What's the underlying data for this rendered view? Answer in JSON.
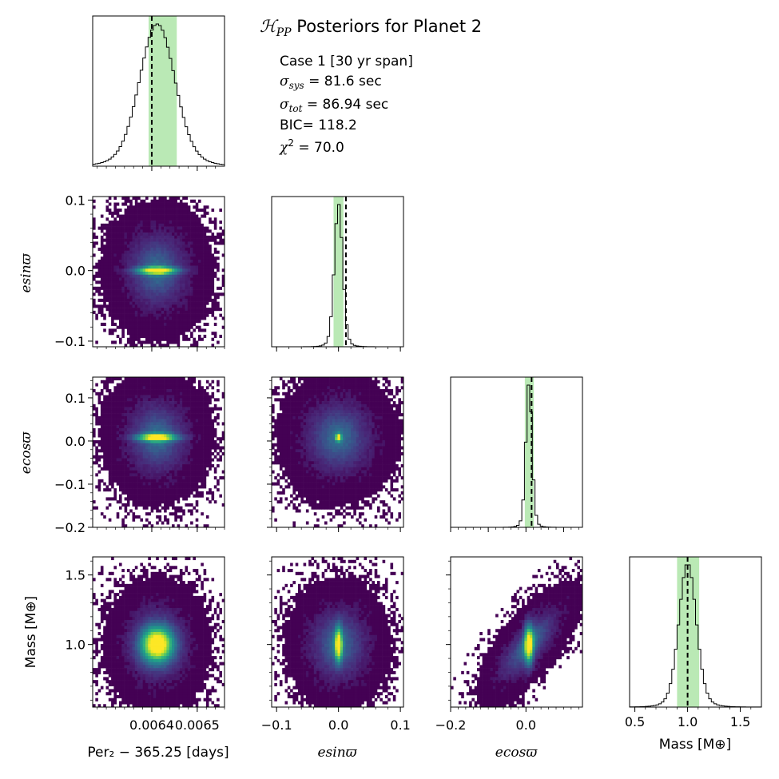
{
  "title": {
    "symbol": "ℋ",
    "symbol_sub": "PP",
    "text": " Posteriors for Planet 2"
  },
  "info_box": {
    "line1": "Case 1 [30 yr span]",
    "sigma_sys": {
      "symbol": "σ",
      "sub": "sys",
      "value": " = 81.6 sec"
    },
    "sigma_tot": {
      "symbol": "σ",
      "sub": "tot",
      "value": " = 86.94 sec"
    },
    "bic": "BIC= 118.2",
    "chi2": {
      "symbol": "χ",
      "sup": "2",
      "value": " = 70.0"
    }
  },
  "axis_labels": {
    "x_period": "Per₂ − 365.25 [days]",
    "x_esin": "esinϖ",
    "x_ecos": "ecosϖ",
    "x_mass": "Mass [M⊕]",
    "y_esin": "esinϖ",
    "y_ecos": "ecosϖ",
    "y_mass": "Mass [M⊕]"
  },
  "colors": {
    "band": "#8fdc88",
    "viridis": [
      "#440154",
      "#482878",
      "#3e4989",
      "#31688e",
      "#26828e",
      "#1f9e89",
      "#35b779",
      "#6ece58",
      "#b5de2b",
      "#fde725"
    ]
  },
  "chart_data": {
    "type": "corner",
    "parameters": [
      {
        "id": "period",
        "label": "Per₂ − 365.25 [days]",
        "range": [
          0.00627,
          0.00656
        ],
        "ticks": [
          0.0064,
          0.0065
        ],
        "tick_labels": [
          "0.0064",
          "0.0065"
        ],
        "minor_step": 2e-05,
        "mean": 0.006412,
        "sigma": 3.8e-05,
        "truth": 0.0064,
        "band": [
          0.006393,
          0.006455
        ]
      },
      {
        "id": "esin",
        "label": "esinϖ",
        "range": [
          -0.108,
          0.105
        ],
        "ticks": [
          -0.1,
          0.0,
          0.1
        ],
        "tick_labels": [
          "−0.1",
          "0.0",
          "0.1"
        ],
        "minor_step": 0.02,
        "mean": 0.0,
        "sigma": 0.0065,
        "truth": 0.012,
        "band": [
          -0.008,
          0.008
        ]
      },
      {
        "id": "ecos",
        "label": "ecosϖ",
        "range": [
          -0.2,
          0.15
        ],
        "ticks": [
          -0.2,
          -0.1,
          0.0,
          0.1
        ],
        "tick_labels": [
          "−0.2",
          "−0.1",
          "0.0",
          "0.1"
        ],
        "minor_step": 0.02,
        "mean": 0.008,
        "sigma": 0.008,
        "truth": 0.015,
        "band": [
          -0.003,
          0.021
        ]
      },
      {
        "id": "mass",
        "label": "Mass [M⊕]",
        "range": [
          0.45,
          1.7
        ],
        "ticks": [
          0.5,
          1.0,
          1.5
        ],
        "tick_labels": [
          "0.5",
          "1.0",
          "1.5"
        ],
        "minor_step": 0.1,
        "mean": 1.0,
        "sigma": 0.08,
        "truth": 1.0,
        "band": [
          0.9,
          1.11
        ]
      }
    ],
    "diagonal_type": "step-histogram",
    "offdiagonal_type": "2d-histogram",
    "offdiagonal_ranges": {
      "esin_y": [
        -0.108,
        0.105
      ],
      "ecos_y": [
        -0.2,
        0.148
      ],
      "mass_y": [
        0.55,
        1.63
      ]
    },
    "offdiagonal_ticks": {
      "esin_y": {
        "ticks": [
          -0.1,
          0.0,
          0.1
        ],
        "labels": [
          "−0.1",
          "0.0",
          "0.1"
        ]
      },
      "ecos_y": {
        "ticks": [
          -0.2,
          -0.1,
          0.0,
          0.1
        ],
        "labels": [
          "−0.2",
          "−0.1",
          "0.0",
          "0.1"
        ]
      },
      "mass_y": {
        "ticks": [
          1.0,
          1.5
        ],
        "labels": [
          "1.0",
          "1.5"
        ]
      },
      "period_x": {
        "ticks": [
          0.0064,
          0.0065
        ],
        "labels": [
          "0.0064",
          "0.0065"
        ]
      },
      "esin_x": {
        "ticks": [
          -0.1,
          0.0,
          0.1
        ],
        "labels": [
          "−0.1",
          "0.0",
          "0.1"
        ]
      },
      "ecos_x": {
        "ticks": [
          -0.2,
          0.0
        ],
        "labels": [
          "−0.2",
          "0.0"
        ]
      },
      "mass_x": {
        "ticks": [
          0.5,
          1.0,
          1.5
        ],
        "labels": [
          "0.5",
          "1.0",
          "1.5"
        ]
      }
    },
    "correlation_ecos_mass": 0.75,
    "colormap": "viridis"
  }
}
